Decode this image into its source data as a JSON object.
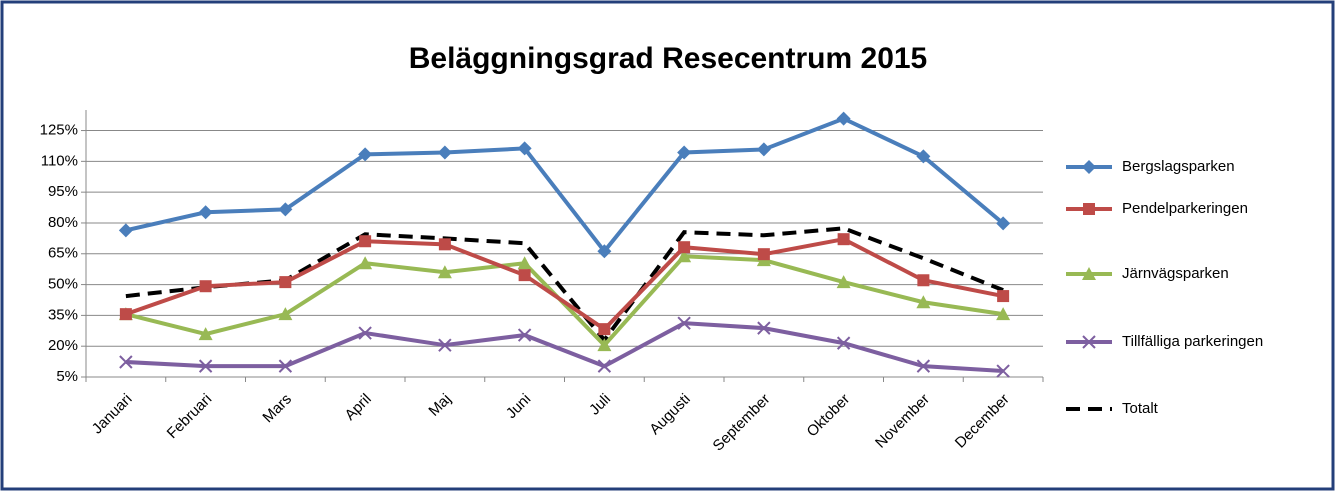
{
  "chart_data": {
    "type": "line",
    "title": "Beläggningsgrad Resecentrum 2015",
    "categories": [
      "Januari",
      "Februari",
      "Mars",
      "April",
      "Maj",
      "Juni",
      "Juli",
      "Augusti",
      "September",
      "Oktober",
      "November",
      "December"
    ],
    "ylim": [
      5,
      135
    ],
    "yticks": [
      {
        "value": 5,
        "label": "5%"
      },
      {
        "value": 20,
        "label": "20%"
      },
      {
        "value": 35,
        "label": "35%"
      },
      {
        "value": 50,
        "label": "50%"
      },
      {
        "value": 65,
        "label": "65%"
      },
      {
        "value": 80,
        "label": "80%"
      },
      {
        "value": 95,
        "label": "95%"
      },
      {
        "value": 110,
        "label": "110%"
      },
      {
        "value": 125,
        "label": "125%"
      }
    ],
    "grid": true,
    "legend": "right",
    "series": [
      {
        "name": "Bergslagsparken",
        "color": "#4a7ebb",
        "marker": "diamond",
        "values": [
          76.4,
          85.2,
          86.6,
          113.4,
          114.3,
          116.3,
          66.2,
          114.3,
          115.8,
          130.8,
          112.4,
          79.8
        ]
      },
      {
        "name": "Pendelparkeringen",
        "color": "#be4b48",
        "marker": "square",
        "values": [
          35.6,
          49.2,
          51.2,
          71.1,
          69.6,
          54.6,
          28.3,
          68.2,
          64.8,
          72.1,
          52.1,
          44.4
        ]
      },
      {
        "name": "Järnvägsparken",
        "color": "#98b954",
        "marker": "triangle",
        "values": [
          35.6,
          25.9,
          35.6,
          60.4,
          56,
          60.4,
          20.5,
          63.8,
          61.9,
          51.2,
          41.4,
          35.6
        ]
      },
      {
        "name": "Tillfälliga parkeringen",
        "color": "#7d5fa0",
        "marker": "x",
        "values": [
          12.3,
          10.3,
          10.3,
          26.4,
          20.5,
          25.4,
          10.3,
          31.2,
          28.8,
          21.5,
          10.3,
          7.9
        ]
      },
      {
        "name": "Totalt",
        "color": "#000000",
        "marker": "none",
        "dashed": true,
        "values": [
          44.4,
          48.7,
          52.1,
          74.5,
          72.5,
          70.1,
          23,
          75.5,
          74,
          77.4,
          62.8,
          47.3
        ]
      }
    ]
  }
}
